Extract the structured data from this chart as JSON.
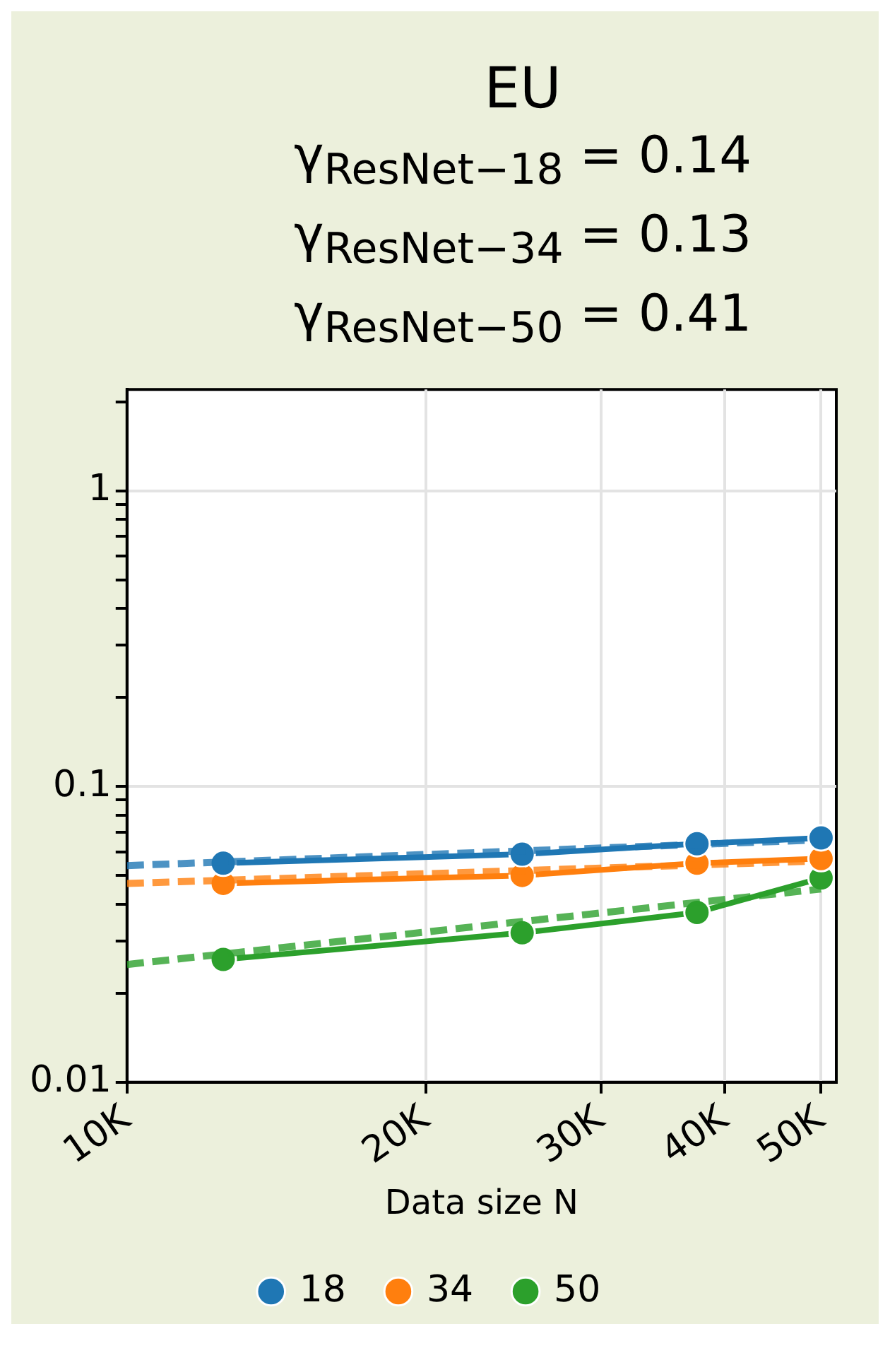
{
  "chart_data": {
    "type": "line",
    "title": "EU",
    "annotations": [
      "γ$_{ResNet−18}$ = 0.14",
      "γ$_{ResNet−34}$ = 0.13",
      "γ$_{ResNet−50}$ = 0.41"
    ],
    "xlabel": "Data size N",
    "log": "xy",
    "grid": true,
    "legend": "bottom",
    "marker": "circle",
    "line_style": "solid",
    "xlim": [
      10000,
      51800
    ],
    "xticks": [
      {
        "value": 10000,
        "label": "10K"
      },
      {
        "value": 20000,
        "label": "20K"
      },
      {
        "value": 30000,
        "label": "30K"
      },
      {
        "value": 40000,
        "label": "40K"
      },
      {
        "value": 50000,
        "label": "50K"
      }
    ],
    "ylim": [
      0.01,
      2.2
    ],
    "yticks": [
      {
        "value": 0.01,
        "label": "0.01"
      },
      {
        "value": 0.02,
        "label": null
      },
      {
        "value": 0.03,
        "label": null
      },
      {
        "value": 0.04,
        "label": null
      },
      {
        "value": 0.05,
        "label": null
      },
      {
        "value": 0.06,
        "label": null
      },
      {
        "value": 0.07,
        "label": null
      },
      {
        "value": 0.08,
        "label": null
      },
      {
        "value": 0.09,
        "label": null
      },
      {
        "value": 0.1,
        "label": "0.1"
      },
      {
        "value": 0.2,
        "label": null
      },
      {
        "value": 0.3,
        "label": null
      },
      {
        "value": 0.4,
        "label": null
      },
      {
        "value": 0.5,
        "label": null
      },
      {
        "value": 0.6,
        "label": null
      },
      {
        "value": 0.7,
        "label": null
      },
      {
        "value": 0.8,
        "label": null
      },
      {
        "value": 0.9,
        "label": null
      },
      {
        "value": 1,
        "label": "1"
      },
      {
        "value": 2,
        "label": null
      }
    ],
    "series": [
      {
        "type": "line",
        "x": [
          10000,
          50000
        ],
        "values": [
          0.054,
          0.066
        ],
        "color": "#1f77b4",
        "line_style": "dashed",
        "marker": "none"
      },
      {
        "type": "line",
        "x": [
          10000,
          50000
        ],
        "values": [
          0.047,
          0.056
        ],
        "color": "#ff7f0e",
        "line_style": "dashed",
        "marker": "none"
      },
      {
        "type": "line",
        "x": [
          10000,
          50000
        ],
        "values": [
          0.025,
          0.045
        ],
        "color": "#2ca02c",
        "line_style": "dashed",
        "marker": "none"
      },
      {
        "name": "18",
        "x": [
          12500,
          25000,
          37500,
          50000
        ],
        "values": [
          0.055,
          0.059,
          0.064,
          0.067
        ],
        "color": "#1f77b4"
      },
      {
        "name": "34",
        "x": [
          12500,
          25000,
          37500,
          50000
        ],
        "values": [
          0.047,
          0.05,
          0.055,
          0.057
        ],
        "color": "#ff7f0e"
      },
      {
        "name": "50",
        "x": [
          12500,
          25000,
          37500,
          50000
        ],
        "values": [
          0.026,
          0.032,
          0.0375,
          0.049
        ],
        "color": "#2ca02c"
      }
    ]
  }
}
